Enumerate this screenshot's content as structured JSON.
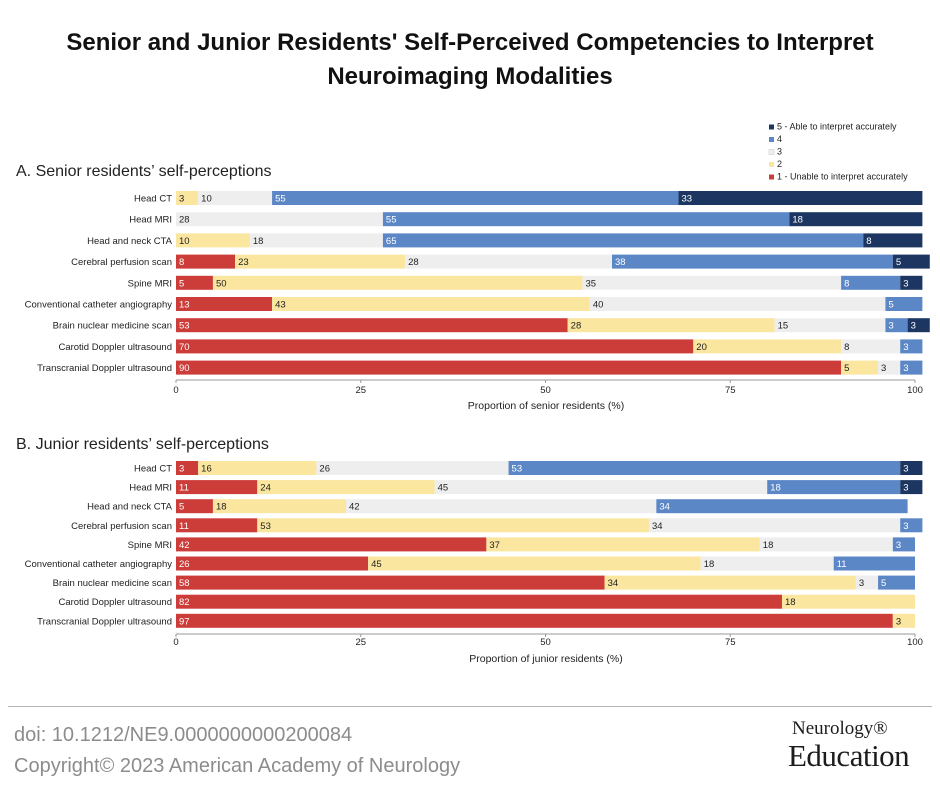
{
  "title": "Senior and Junior Residents' Self-Perceived Competencies to Interpret Neuroimaging Modalities",
  "legend": [
    {
      "label": "5 - Able to interpret accurately",
      "color": "#1c3661"
    },
    {
      "label": "4",
      "color": "#5b87c6"
    },
    {
      "label": "3",
      "color": "#eeeeee"
    },
    {
      "label": "2",
      "color": "#fae69f"
    },
    {
      "label": "1 - Unable to interpret accurately",
      "color": "#cc3d3a"
    }
  ],
  "chart_data": [
    {
      "type": "bar",
      "orientation": "horizontal",
      "stacked": true,
      "panel_title": "A. Senior residents’ self-perceptions",
      "xlabel": "Proportion of senior residents (%)",
      "xlim": [
        0,
        100
      ],
      "xticks": [
        0,
        25,
        50,
        75,
        100
      ],
      "categories": [
        "Head CT",
        "Head MRI",
        "Head and neck CTA",
        "Cerebral perfusion scan",
        "Spine MRI",
        "Conventional catheter angiography",
        "Brain nuclear medicine scan",
        "Carotid Doppler ultrasound",
        "Transcranial Doppler ultrasound"
      ],
      "series": [
        {
          "name": "1 - Unable to interpret accurately",
          "values": [
            0,
            0,
            0,
            8,
            5,
            13,
            53,
            70,
            90
          ]
        },
        {
          "name": "2",
          "values": [
            3,
            0,
            10,
            23,
            50,
            43,
            28,
            20,
            5
          ]
        },
        {
          "name": "3",
          "values": [
            10,
            28,
            18,
            28,
            35,
            40,
            15,
            8,
            3
          ]
        },
        {
          "name": "4",
          "values": [
            55,
            55,
            65,
            38,
            8,
            5,
            3,
            3,
            3
          ]
        },
        {
          "name": "5 - Able to interpret accurately",
          "values": [
            33,
            18,
            8,
            5,
            3,
            0,
            3,
            0,
            0
          ]
        }
      ]
    },
    {
      "type": "bar",
      "orientation": "horizontal",
      "stacked": true,
      "panel_title": "B. Junior residents’ self-perceptions",
      "xlabel": "Proportion of junior residents (%)",
      "xlim": [
        0,
        100
      ],
      "xticks": [
        0,
        25,
        50,
        75,
        100
      ],
      "categories": [
        "Head CT",
        "Head MRI",
        "Head and neck CTA",
        "Cerebral perfusion scan",
        "Spine MRI",
        "Conventional catheter angiography",
        "Brain nuclear medicine scan",
        "Carotid Doppler ultrasound",
        "Transcranial Doppler ultrasound"
      ],
      "series": [
        {
          "name": "1 - Unable to interpret accurately",
          "values": [
            3,
            11,
            5,
            11,
            42,
            26,
            58,
            82,
            97
          ]
        },
        {
          "name": "2",
          "values": [
            16,
            24,
            18,
            53,
            37,
            45,
            34,
            18,
            3
          ]
        },
        {
          "name": "3",
          "values": [
            26,
            45,
            42,
            34,
            18,
            18,
            3,
            0,
            0
          ]
        },
        {
          "name": "4",
          "values": [
            53,
            18,
            34,
            3,
            3,
            11,
            5,
            0,
            0
          ]
        },
        {
          "name": "5 - Able to interpret accurately",
          "values": [
            3,
            3,
            0,
            0,
            0,
            0,
            0,
            0,
            0
          ]
        }
      ]
    }
  ],
  "footer": {
    "doi": "doi: 10.1212/NE9.0000000000200084",
    "copyright": "Copyright© 2023 American Academy of Neurology",
    "logo_line1": "Neurology®",
    "logo_line2": "Education"
  }
}
